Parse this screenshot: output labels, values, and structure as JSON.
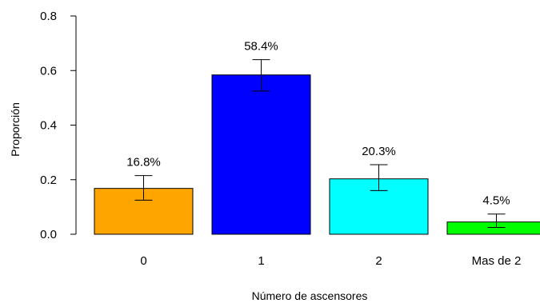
{
  "chart_data": {
    "type": "bar",
    "categories": [
      "0",
      "1",
      "2",
      "Mas de 2"
    ],
    "values": [
      0.168,
      0.584,
      0.203,
      0.045
    ],
    "value_labels": [
      "16.8%",
      "58.4%",
      "20.3%",
      "4.5%"
    ],
    "error_bars": [
      {
        "low": 0.125,
        "high": 0.215
      },
      {
        "low": 0.525,
        "high": 0.64
      },
      {
        "low": 0.16,
        "high": 0.255
      },
      {
        "low": 0.025,
        "high": 0.074
      }
    ],
    "colors": [
      "#ffa500",
      "#0000ff",
      "#00ffff",
      "#00ff00"
    ],
    "xlabel": "Número de ascensores",
    "ylabel": "Proporción",
    "ylim": [
      0,
      0.8
    ],
    "yticks": [
      0.0,
      0.2,
      0.4,
      0.6,
      0.8
    ],
    "ytick_labels": [
      "0.0",
      "0.2",
      "0.4",
      "0.6",
      "0.8"
    ],
    "grid": false,
    "legend": "none"
  }
}
